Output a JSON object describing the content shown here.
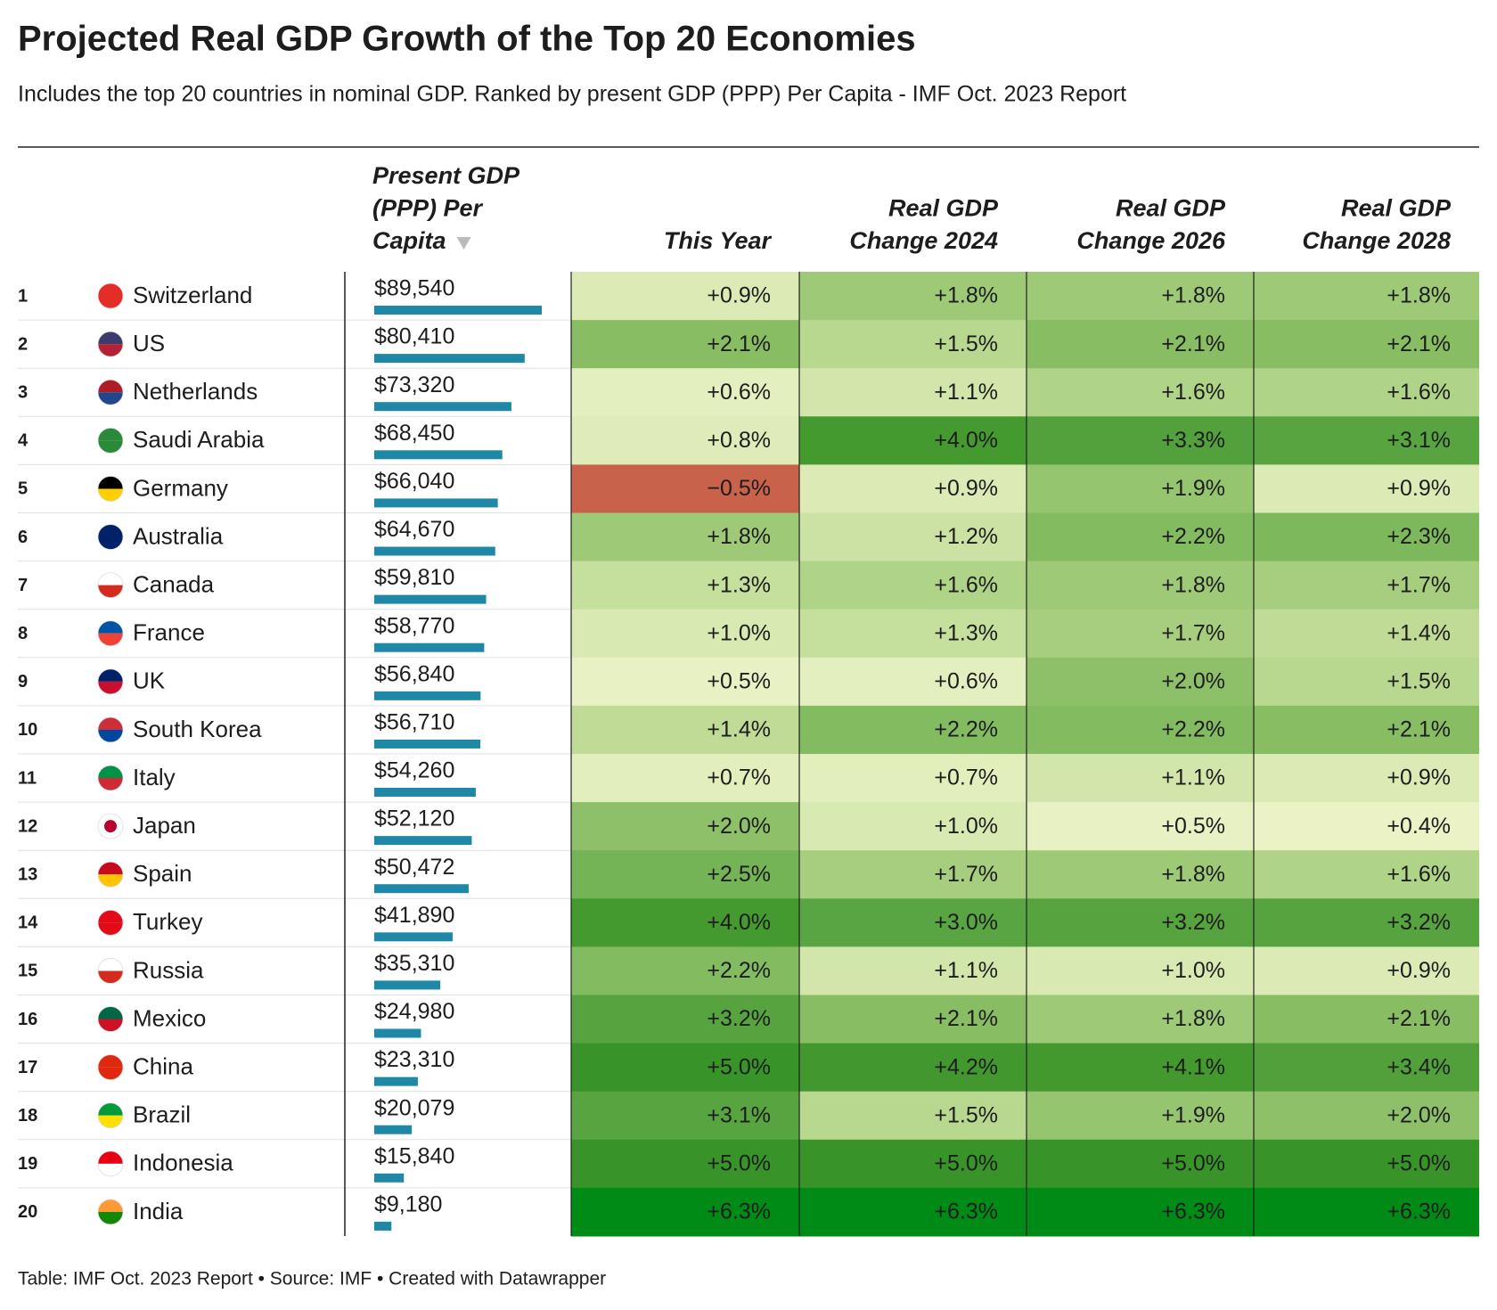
{
  "header": {
    "title": "Projected Real GDP Growth of the Top 20 Economies",
    "subtitle": "Includes the top 20 countries in nominal GDP. Ranked by present GDP (PPP) Per Capita - IMF Oct. 2023 Report"
  },
  "table": {
    "columns": [
      [
        "Present GDP",
        "(PPP) Per",
        "Capita"
      ],
      [
        "This Year"
      ],
      [
        "Real GDP",
        "Change 2024"
      ],
      [
        "Real GDP",
        "Change 2026"
      ],
      [
        "Real GDP",
        "Change 2028"
      ]
    ],
    "color_scale": [
      {
        "value": -0.5,
        "color": "#c8624a"
      },
      {
        "value": 0.4,
        "color": "#eaf2c6"
      },
      {
        "value": 1.0,
        "color": "#d9e9b2"
      },
      {
        "value": 1.5,
        "color": "#b8d88f"
      },
      {
        "value": 2.0,
        "color": "#8dc068"
      },
      {
        "value": 3.0,
        "color": "#5aa543"
      },
      {
        "value": 4.0,
        "color": "#44992f"
      },
      {
        "value": 5.0,
        "color": "#389429"
      },
      {
        "value": 6.3,
        "color": "#008a16"
      }
    ],
    "rows": [
      {
        "rank": 1,
        "country": "Switzerland",
        "gdp": 89540,
        "gdp_label": "$89,540",
        "growth": [
          0.9,
          1.8,
          1.8,
          1.8
        ],
        "growth_labels": [
          "+0.9%",
          "+1.8%",
          "+1.8%",
          "+1.8%"
        ]
      },
      {
        "rank": 2,
        "country": "US",
        "gdp": 80410,
        "gdp_label": "$80,410",
        "growth": [
          2.1,
          1.5,
          2.1,
          2.1
        ],
        "growth_labels": [
          "+2.1%",
          "+1.5%",
          "+2.1%",
          "+2.1%"
        ]
      },
      {
        "rank": 3,
        "country": "Netherlands",
        "gdp": 73320,
        "gdp_label": "$73,320",
        "growth": [
          0.6,
          1.1,
          1.6,
          1.6
        ],
        "growth_labels": [
          "+0.6%",
          "+1.1%",
          "+1.6%",
          "+1.6%"
        ]
      },
      {
        "rank": 4,
        "country": "Saudi Arabia",
        "gdp": 68450,
        "gdp_label": "$68,450",
        "growth": [
          0.8,
          4.0,
          3.3,
          3.1
        ],
        "growth_labels": [
          "+0.8%",
          "+4.0%",
          "+3.3%",
          "+3.1%"
        ]
      },
      {
        "rank": 5,
        "country": "Germany",
        "gdp": 66040,
        "gdp_label": "$66,040",
        "growth": [
          -0.5,
          0.9,
          1.9,
          0.9
        ],
        "growth_labels": [
          "−0.5%",
          "+0.9%",
          "+1.9%",
          "+0.9%"
        ]
      },
      {
        "rank": 6,
        "country": "Australia",
        "gdp": 64670,
        "gdp_label": "$64,670",
        "growth": [
          1.8,
          1.2,
          2.2,
          2.3
        ],
        "growth_labels": [
          "+1.8%",
          "+1.2%",
          "+2.2%",
          "+2.3%"
        ]
      },
      {
        "rank": 7,
        "country": "Canada",
        "gdp": 59810,
        "gdp_label": "$59,810",
        "growth": [
          1.3,
          1.6,
          1.8,
          1.7
        ],
        "growth_labels": [
          "+1.3%",
          "+1.6%",
          "+1.8%",
          "+1.7%"
        ]
      },
      {
        "rank": 8,
        "country": "France",
        "gdp": 58770,
        "gdp_label": "$58,770",
        "growth": [
          1.0,
          1.3,
          1.7,
          1.4
        ],
        "growth_labels": [
          "+1.0%",
          "+1.3%",
          "+1.7%",
          "+1.4%"
        ]
      },
      {
        "rank": 9,
        "country": "UK",
        "gdp": 56840,
        "gdp_label": "$56,840",
        "growth": [
          0.5,
          0.6,
          2.0,
          1.5
        ],
        "growth_labels": [
          "+0.5%",
          "+0.6%",
          "+2.0%",
          "+1.5%"
        ]
      },
      {
        "rank": 10,
        "country": "South Korea",
        "gdp": 56710,
        "gdp_label": "$56,710",
        "growth": [
          1.4,
          2.2,
          2.2,
          2.1
        ],
        "growth_labels": [
          "+1.4%",
          "+2.2%",
          "+2.2%",
          "+2.1%"
        ]
      },
      {
        "rank": 11,
        "country": "Italy",
        "gdp": 54260,
        "gdp_label": "$54,260",
        "growth": [
          0.7,
          0.7,
          1.1,
          0.9
        ],
        "growth_labels": [
          "+0.7%",
          "+0.7%",
          "+1.1%",
          "+0.9%"
        ]
      },
      {
        "rank": 12,
        "country": "Japan",
        "gdp": 52120,
        "gdp_label": "$52,120",
        "growth": [
          2.0,
          1.0,
          0.5,
          0.4
        ],
        "growth_labels": [
          "+2.0%",
          "+1.0%",
          "+0.5%",
          "+0.4%"
        ]
      },
      {
        "rank": 13,
        "country": "Spain",
        "gdp": 50472,
        "gdp_label": "$50,472",
        "growth": [
          2.5,
          1.7,
          1.8,
          1.6
        ],
        "growth_labels": [
          "+2.5%",
          "+1.7%",
          "+1.8%",
          "+1.6%"
        ]
      },
      {
        "rank": 14,
        "country": "Turkey",
        "gdp": 41890,
        "gdp_label": "$41,890",
        "growth": [
          4.0,
          3.0,
          3.2,
          3.2
        ],
        "growth_labels": [
          "+4.0%",
          "+3.0%",
          "+3.2%",
          "+3.2%"
        ]
      },
      {
        "rank": 15,
        "country": "Russia",
        "gdp": 35310,
        "gdp_label": "$35,310",
        "growth": [
          2.2,
          1.1,
          1.0,
          0.9
        ],
        "growth_labels": [
          "+2.2%",
          "+1.1%",
          "+1.0%",
          "+0.9%"
        ]
      },
      {
        "rank": 16,
        "country": "Mexico",
        "gdp": 24980,
        "gdp_label": "$24,980",
        "growth": [
          3.2,
          2.1,
          1.8,
          2.1
        ],
        "growth_labels": [
          "+3.2%",
          "+2.1%",
          "+1.8%",
          "+2.1%"
        ]
      },
      {
        "rank": 17,
        "country": "China",
        "gdp": 23310,
        "gdp_label": "$23,310",
        "growth": [
          5.0,
          4.2,
          4.1,
          3.4
        ],
        "growth_labels": [
          "+5.0%",
          "+4.2%",
          "+4.1%",
          "+3.4%"
        ]
      },
      {
        "rank": 18,
        "country": "Brazil",
        "gdp": 20079,
        "gdp_label": "$20,079",
        "growth": [
          3.1,
          1.5,
          1.9,
          2.0
        ],
        "growth_labels": [
          "+3.1%",
          "+1.5%",
          "+1.9%",
          "+2.0%"
        ]
      },
      {
        "rank": 19,
        "country": "Indonesia",
        "gdp": 15840,
        "gdp_label": "$15,840",
        "growth": [
          5.0,
          5.0,
          5.0,
          5.0
        ],
        "growth_labels": [
          "+5.0%",
          "+5.0%",
          "+5.0%",
          "+5.0%"
        ]
      },
      {
        "rank": 20,
        "country": "India",
        "gdp": 9180,
        "gdp_label": "$9,180",
        "growth": [
          6.3,
          6.3,
          6.3,
          6.3
        ],
        "growth_labels": [
          "+6.3%",
          "+6.3%",
          "+6.3%",
          "+6.3%"
        ]
      }
    ]
  },
  "footer": "Table: IMF Oct. 2023 Report • Source: IMF • Created with Datawrapper"
}
